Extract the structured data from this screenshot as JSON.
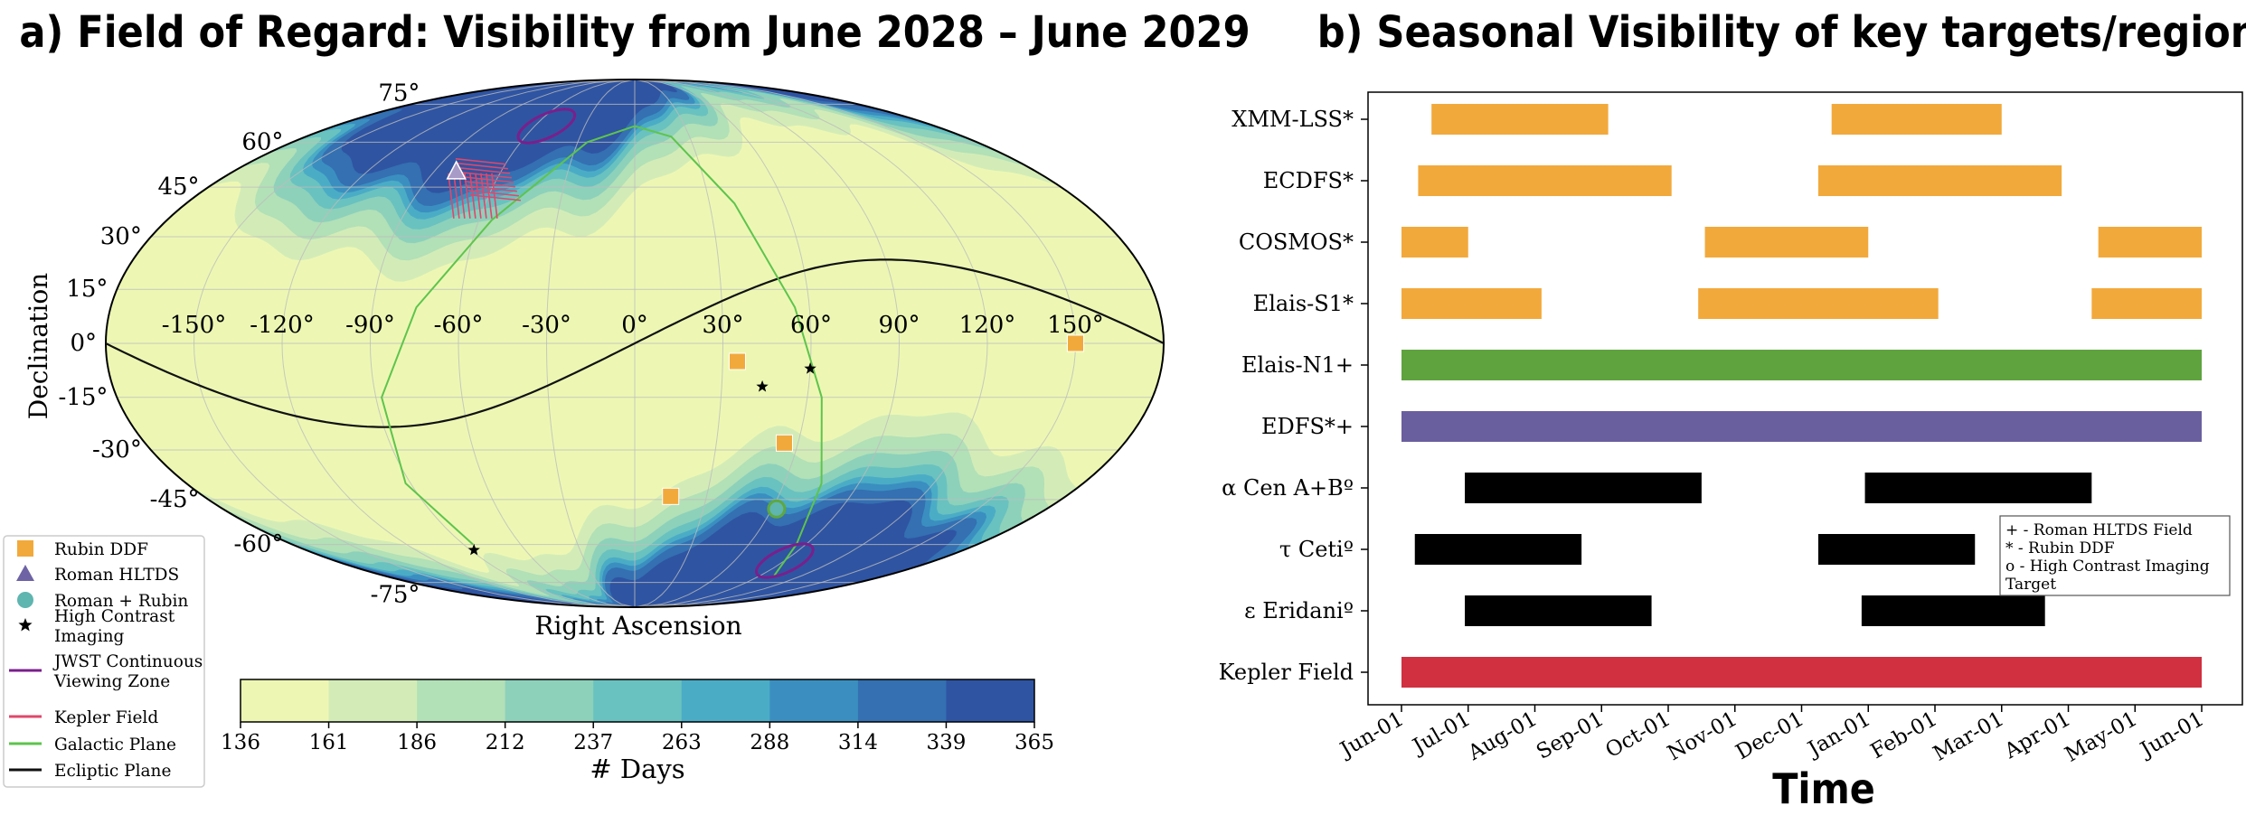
{
  "colors": {
    "levels": [
      "#edf7b3",
      "#d3ecb7",
      "#b2e0b7",
      "#8dd1bb",
      "#69c2bf",
      "#4bacc6",
      "#3a8fc0",
      "#3470b2",
      "#2f54a2"
    ],
    "rubin": "#f2a93b",
    "roman": "#6e63a4",
    "roman_rubin": "#5fb5b0",
    "jwst": "#7a1f8c",
    "kepler": "#e0476b",
    "galactic": "#5ec44d",
    "ecliptic": "#111111"
  },
  "chart_data": [
    {
      "type": "heatmap",
      "projection": "mollweide",
      "title": "a) Field of Regard: Visibility from June 2028 – June 2029",
      "xlabel": "Right Ascension",
      "ylabel": "Declination",
      "ra_tick_labels": [
        "-150°",
        "-120°",
        "-90°",
        "-60°",
        "-30°",
        "0°",
        "30°",
        "60°",
        "90°",
        "120°",
        "150°"
      ],
      "ra_ticks": [
        -150,
        -120,
        -90,
        -60,
        -30,
        0,
        30,
        60,
        90,
        120,
        150
      ],
      "dec_tick_labels": [
        "75°",
        "60°",
        "45°",
        "30°",
        "15°",
        "0°",
        "-15°",
        "-30°",
        "-45°",
        "-60°",
        "-75°"
      ],
      "dec_ticks": [
        75,
        60,
        45,
        30,
        15,
        0,
        -15,
        -30,
        -45,
        -60,
        -75
      ],
      "colorbar": {
        "label": "# Days",
        "tick_labels": [
          "136",
          "161",
          "186",
          "212",
          "237",
          "263",
          "288",
          "314",
          "339",
          "365"
        ],
        "min": 136,
        "max": 365
      },
      "markers": {
        "rubin_ddf": [
          [
            150,
            0
          ],
          [
            35,
            -5
          ],
          [
            55,
            -28
          ],
          [
            15,
            -44
          ]
        ],
        "roman_hltds": [
          [
            -80,
            50
          ]
        ],
        "roman_rubin": [
          [
            62,
            -48
          ]
        ],
        "high_contrast": [
          [
            44,
            -12
          ],
          [
            60,
            -7
          ],
          [
            -88,
            -62
          ]
        ],
        "jwst_cvz": [
          [
            -53,
            66
          ],
          [
            90,
            -66
          ]
        ],
        "kepler": [
          [
            -60,
            42
          ]
        ]
      },
      "legend": [
        "Rubin DDF",
        "Roman HLTDS",
        "Roman + Rubin",
        "High Contrast Imaging",
        "JWST Continuous Viewing Zone",
        "Kepler Field",
        "Galactic Plane",
        "Ecliptic Plane"
      ]
    },
    {
      "type": "bar",
      "orientation": "horizontal-timeline",
      "title": "b) Seasonal Visibility of key targets/regions",
      "xlabel": "Time",
      "x_tick_labels": [
        "Jun-01",
        "Jul-01",
        "Aug-01",
        "Sep-01",
        "Oct-01",
        "Nov-01",
        "Dec-01",
        "Jan-01",
        "Feb-01",
        "Mar-01",
        "Apr-01",
        "May-01",
        "Jun-01"
      ],
      "xlim_months": [
        0,
        12
      ],
      "categories": [
        "XMM-LSS*",
        "ECDFS*",
        "COSMOS*",
        "Elais-S1*",
        "Elais-N1+",
        "EDFS*+",
        "α Cen A+Bº",
        "τ Cetiº",
        "ε Eridaniº",
        "Kepler Field"
      ],
      "series": [
        {
          "name": "XMM-LSS*",
          "color": "#f2a93b",
          "intervals": [
            [
              0.45,
              3.1
            ],
            [
              6.45,
              9.0
            ]
          ]
        },
        {
          "name": "ECDFS*",
          "color": "#f2a93b",
          "intervals": [
            [
              0.25,
              4.05
            ],
            [
              6.25,
              9.9
            ]
          ]
        },
        {
          "name": "COSMOS*",
          "color": "#f2a93b",
          "intervals": [
            [
              0.0,
              1.0
            ],
            [
              4.55,
              7.0
            ],
            [
              10.45,
              12.0
            ]
          ]
        },
        {
          "name": "Elais-S1*",
          "color": "#f2a93b",
          "intervals": [
            [
              0.0,
              2.1
            ],
            [
              4.45,
              8.05
            ],
            [
              10.35,
              12.0
            ]
          ]
        },
        {
          "name": "Elais-N1+",
          "color": "#5fa33f",
          "intervals": [
            [
              0.0,
              12.0
            ]
          ]
        },
        {
          "name": "EDFS*+",
          "color": "#6a5f9e",
          "intervals": [
            [
              0.0,
              12.0
            ]
          ]
        },
        {
          "name": "α Cen A+Bº",
          "color": "#000000",
          "intervals": [
            [
              0.95,
              4.5
            ],
            [
              6.95,
              10.35
            ]
          ]
        },
        {
          "name": "τ Cetiº",
          "color": "#000000",
          "intervals": [
            [
              0.2,
              2.7
            ],
            [
              6.25,
              8.6
            ]
          ]
        },
        {
          "name": "ε Eridaniº",
          "color": "#000000",
          "intervals": [
            [
              0.95,
              3.75
            ],
            [
              6.9,
              9.65
            ]
          ]
        },
        {
          "name": "Kepler Field",
          "color": "#d0303f",
          "intervals": [
            [
              0.0,
              12.0
            ]
          ]
        }
      ],
      "legend_note": [
        "+ - Roman HLTDS Field",
        "*  - Rubin DDF",
        "o  - High Contrast Imaging",
        "     Target"
      ]
    }
  ]
}
